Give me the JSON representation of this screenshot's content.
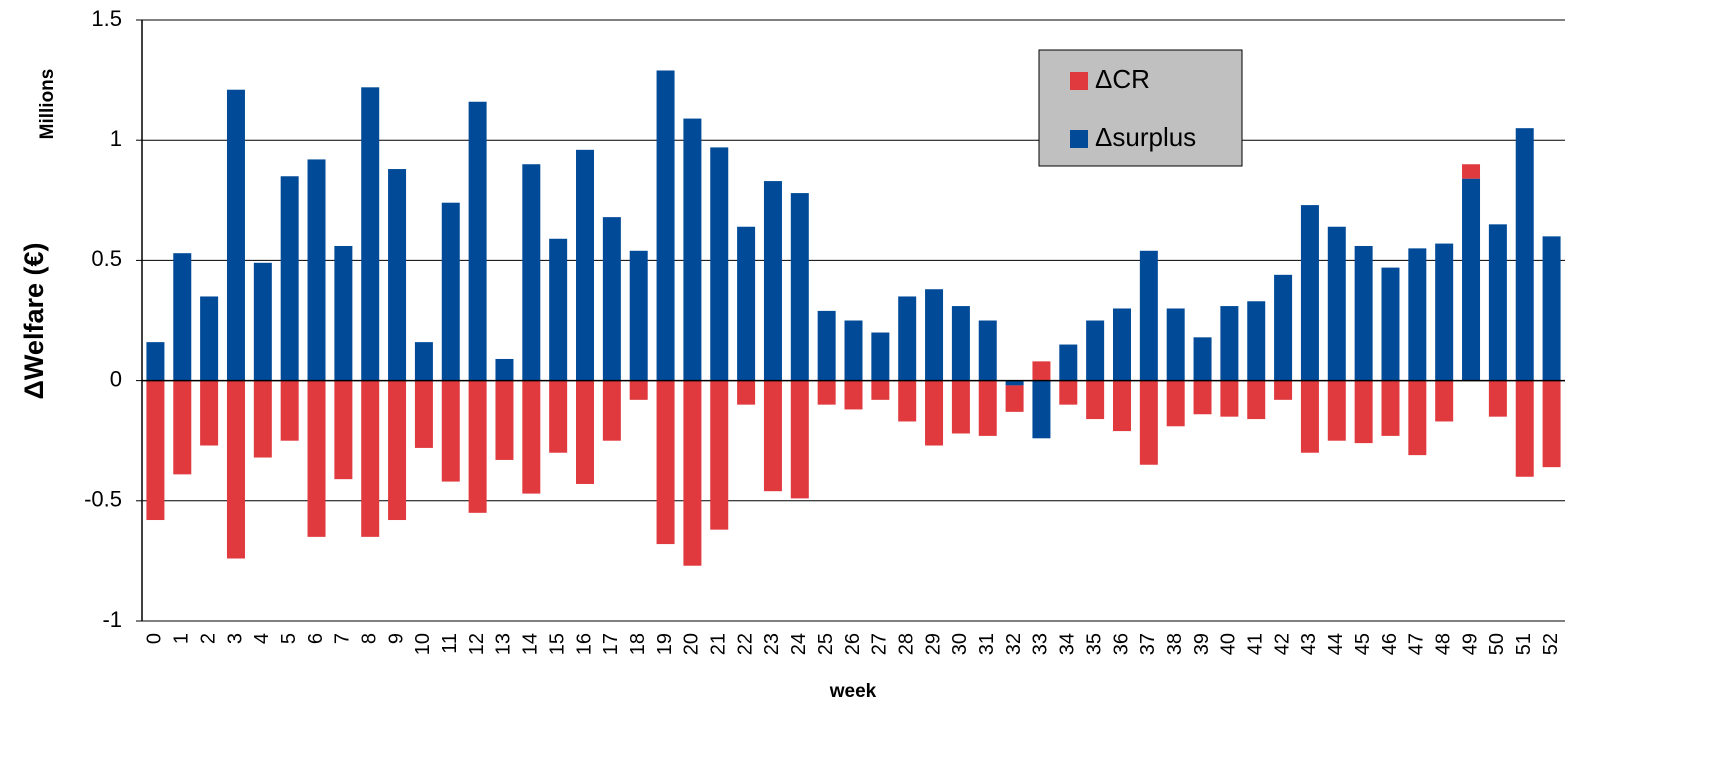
{
  "chart_data": {
    "type": "bar",
    "stacked": true,
    "y_label": "ΔWelfare (€)",
    "y_unit_label": "Millions",
    "x_label": "week",
    "categories": [
      "0",
      "1",
      "2",
      "3",
      "4",
      "5",
      "6",
      "7",
      "8",
      "9",
      "10",
      "11",
      "12",
      "13",
      "14",
      "15",
      "16",
      "17",
      "18",
      "19",
      "20",
      "21",
      "22",
      "23",
      "24",
      "25",
      "26",
      "27",
      "28",
      "29",
      "30",
      "31",
      "32",
      "33",
      "34",
      "35",
      "36",
      "37",
      "38",
      "39",
      "40",
      "41",
      "42",
      "43",
      "44",
      "45",
      "46",
      "47",
      "48",
      "49",
      "50",
      "51",
      "52"
    ],
    "series": [
      {
        "name": "Δsurplus",
        "color": "#004a98",
        "values": [
          0.16,
          0.53,
          0.35,
          1.21,
          0.49,
          0.85,
          0.92,
          0.56,
          1.22,
          0.88,
          0.16,
          0.74,
          1.16,
          0.09,
          0.9,
          0.59,
          0.96,
          0.68,
          0.54,
          1.29,
          1.09,
          0.97,
          0.64,
          0.83,
          0.78,
          0.29,
          0.25,
          0.2,
          0.35,
          0.38,
          0.31,
          0.25,
          -0.02,
          -0.24,
          0.15,
          0.25,
          0.3,
          0.54,
          0.3,
          0.18,
          0.31,
          0.33,
          0.44,
          0.73,
          0.64,
          0.56,
          0.47,
          0.55,
          0.57,
          0.84,
          0.65,
          1.05,
          0.6
        ]
      },
      {
        "name": "ΔCR",
        "color": "#e0393e",
        "values": [
          -0.58,
          -0.39,
          -0.27,
          -0.74,
          -0.32,
          -0.25,
          -0.65,
          -0.41,
          -0.65,
          -0.58,
          -0.28,
          -0.42,
          -0.55,
          -0.33,
          -0.47,
          -0.3,
          -0.43,
          -0.25,
          -0.08,
          -0.68,
          -0.77,
          -0.62,
          -0.1,
          -0.46,
          -0.49,
          -0.1,
          -0.12,
          -0.08,
          -0.17,
          -0.27,
          -0.22,
          -0.23,
          -0.11,
          0.08,
          -0.1,
          -0.16,
          -0.21,
          -0.35,
          -0.19,
          -0.14,
          -0.15,
          -0.16,
          -0.08,
          -0.3,
          -0.25,
          -0.26,
          -0.23,
          -0.31,
          -0.17,
          0.06,
          -0.15,
          -0.4,
          -0.36
        ]
      }
    ],
    "ylim": [
      -1,
      1.5
    ],
    "yticks": [
      -1,
      -0.5,
      0,
      0.5,
      1,
      1.5
    ],
    "grid": true,
    "legend": "upper right"
  }
}
